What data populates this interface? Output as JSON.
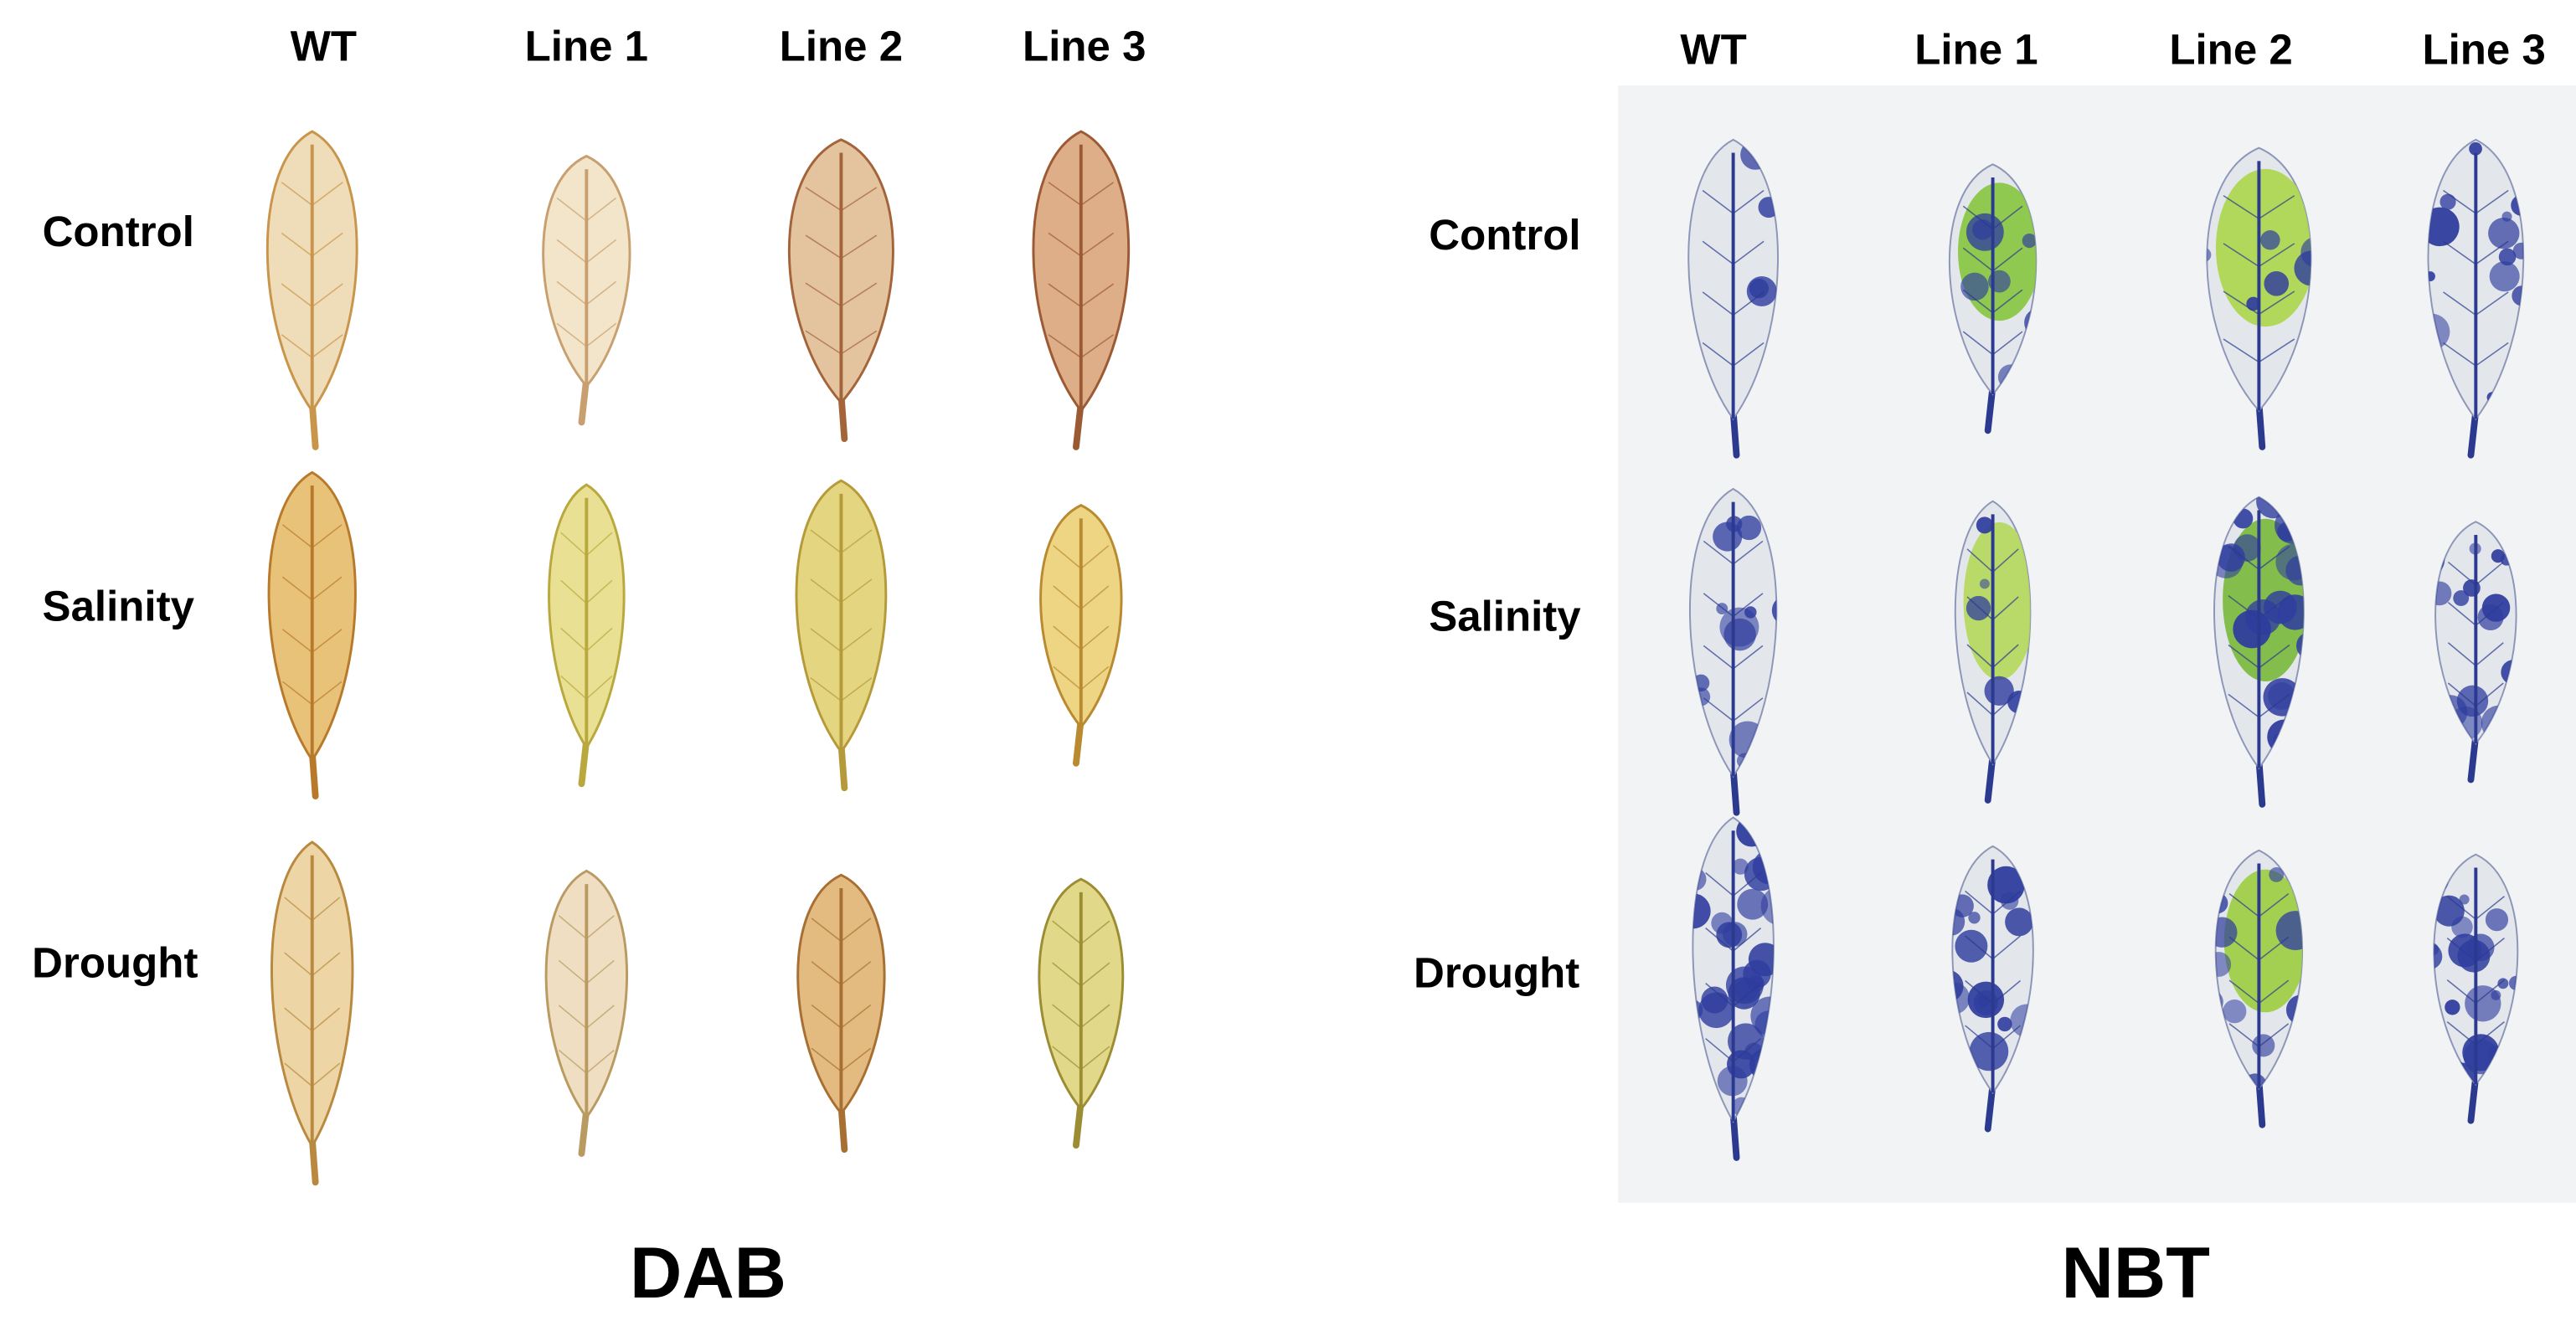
{
  "panels": [
    {
      "title": "DAB",
      "columns": [
        "WT",
        "Line 1",
        "Line 2",
        "Line 3"
      ],
      "rows": [
        "Control",
        "Salinity",
        "Drought"
      ]
    },
    {
      "title": "NBT",
      "columns": [
        "WT",
        "Line 1",
        "Line 2",
        "Line 3"
      ],
      "rows": [
        "Control",
        "Salinity",
        "Drought"
      ]
    }
  ]
}
